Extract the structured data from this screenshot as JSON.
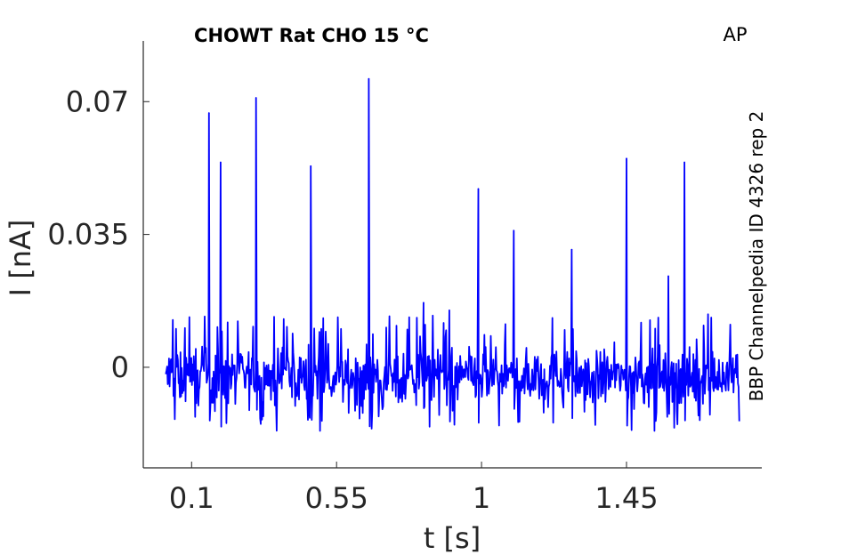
{
  "chart_data": {
    "type": "line",
    "title": "CHOWT  Rat  CHO  15 °C",
    "corner_label": "AP",
    "side_label": "BBP Channelpedia ID 4326 rep 2",
    "xlabel": "t [s]",
    "ylabel": "I [nA]",
    "xlim": [
      -0.05,
      1.87
    ],
    "ylim": [
      -0.0265,
      0.086
    ],
    "x_ticks": [
      0.1,
      0.55,
      1,
      1.45
    ],
    "x_tick_labels": [
      "0.1",
      "0.55",
      "1",
      "1.45"
    ],
    "y_ticks": [
      0,
      0.035,
      0.07
    ],
    "y_tick_labels": [
      "0",
      "0.035",
      "0.07"
    ],
    "line_color": "#0000ff",
    "x_range": [
      0.02,
      1.8
    ],
    "noise_range": [
      -0.017,
      0.014
    ],
    "spikes": [
      {
        "x": 0.154,
        "y": 0.067
      },
      {
        "x": 0.19,
        "y": 0.054
      },
      {
        "x": 0.3,
        "y": 0.071
      },
      {
        "x": 0.47,
        "y": 0.053
      },
      {
        "x": 0.65,
        "y": 0.076
      },
      {
        "x": 0.82,
        "y": 0.017
      },
      {
        "x": 0.9,
        "y": 0.015
      },
      {
        "x": 0.99,
        "y": 0.047
      },
      {
        "x": 1.1,
        "y": 0.036
      },
      {
        "x": 1.22,
        "y": 0.013
      },
      {
        "x": 1.28,
        "y": 0.031
      },
      {
        "x": 1.45,
        "y": 0.055
      },
      {
        "x": 1.58,
        "y": 0.024
      },
      {
        "x": 1.63,
        "y": 0.054
      }
    ]
  }
}
